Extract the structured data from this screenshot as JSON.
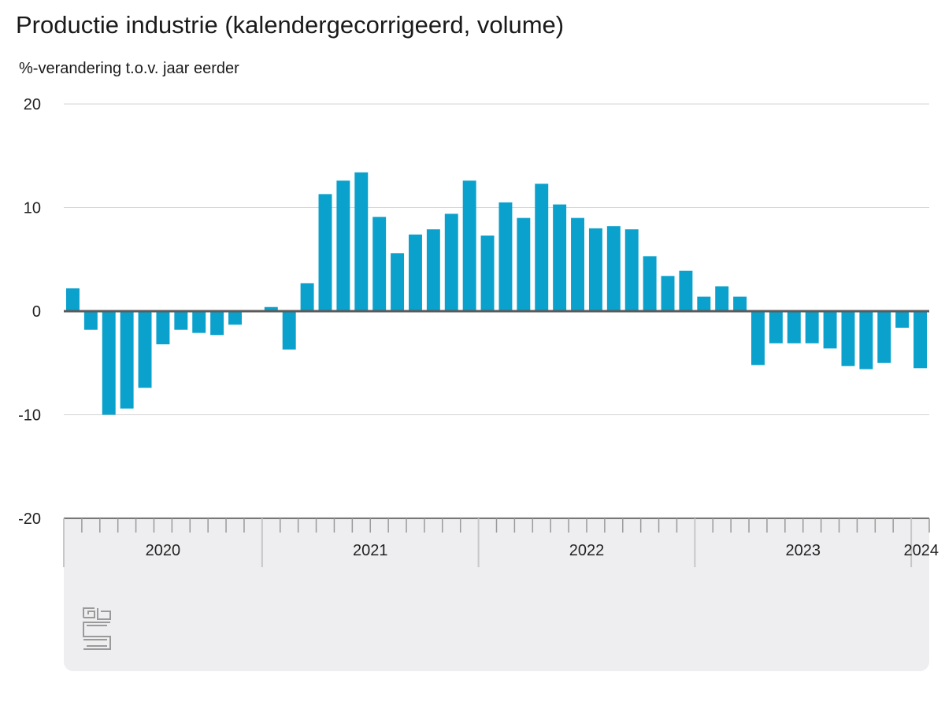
{
  "chart_data": {
    "type": "bar",
    "title": "Productie industrie (kalendergecorrigeerd, volume)",
    "ylabel": "%-verandering t.o.v. jaar eerder",
    "xlabel": "",
    "ylim": [
      -20,
      20
    ],
    "yticks": [
      20,
      10,
      0,
      -10,
      -20
    ],
    "grid": true,
    "bar_color": "#0aa1cc",
    "year_labels": [
      {
        "label": "2020",
        "start_index": 0
      },
      {
        "label": "2021",
        "start_index": 11
      },
      {
        "label": "2022",
        "start_index": 23
      },
      {
        "label": "2023",
        "start_index": 35
      },
      {
        "label": "2024",
        "start_index": 47
      }
    ],
    "values": [
      2.2,
      -1.8,
      -10.0,
      -9.4,
      -7.4,
      -3.2,
      -1.8,
      -2.1,
      -2.3,
      -1.3,
      0.0,
      0.4,
      -3.7,
      2.7,
      11.3,
      12.6,
      13.4,
      9.1,
      5.6,
      7.4,
      7.9,
      9.4,
      12.6,
      7.3,
      10.5,
      9.0,
      12.3,
      10.3,
      9.0,
      8.0,
      8.2,
      7.9,
      5.3,
      3.4,
      3.9,
      1.4,
      2.4,
      1.4,
      -5.2,
      -3.1,
      -3.1,
      -3.1,
      -3.6,
      -5.3,
      -5.6,
      -5.0,
      -1.6,
      -5.5
    ]
  },
  "logo": {
    "name": "cbs"
  }
}
